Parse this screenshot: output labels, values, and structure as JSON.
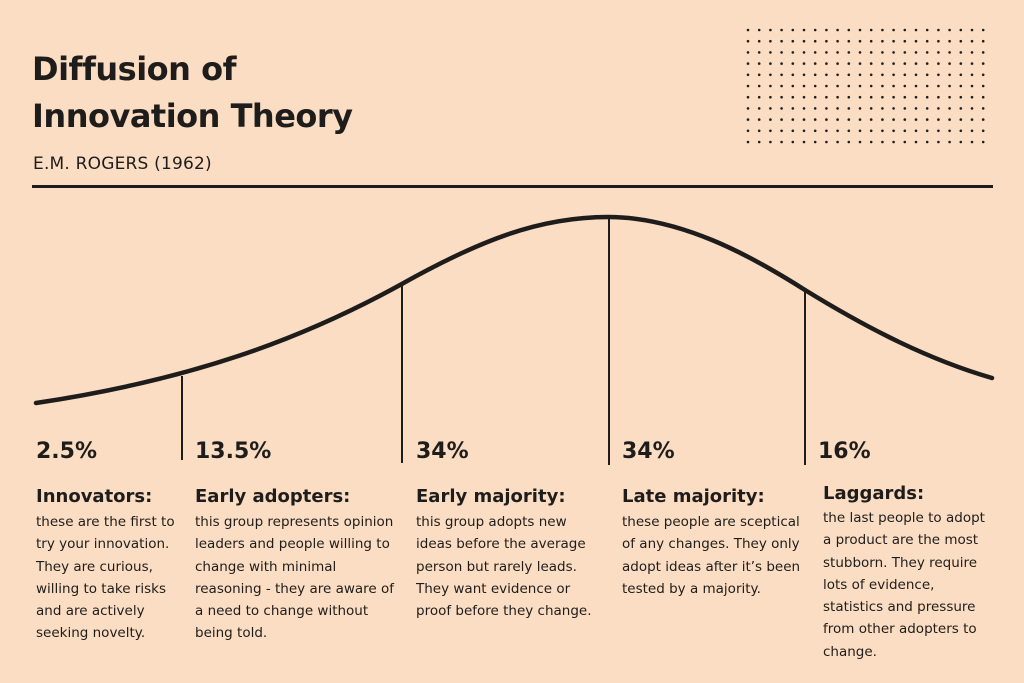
{
  "title": {
    "line1": "Diffusion of",
    "line2": "Innovation Theory"
  },
  "subtitle": "E.M. ROGERS (1962)",
  "colors": {
    "background": "#FBDDC3",
    "ink": "#1F1D1B"
  },
  "segments": [
    {
      "percent": "2.5%",
      "label": "Innovators:",
      "description": "these are the first to try your innovation. They are curious, willing to take risks and are actively seeking novelty."
    },
    {
      "percent": "13.5%",
      "label": "Early adopters:",
      "description": "this group represents opinion leaders and people willing to change with minimal reasoning - they are aware of a need to change without being told."
    },
    {
      "percent": "34%",
      "label": "Early majority:",
      "description": "this group adopts new ideas before the average person but rarely leads. They want evidence or proof before they change."
    },
    {
      "percent": "34%",
      "label": "Late majority:",
      "description": "these people are sceptical of any changes. They only adopt ideas after it’s been tested by a majority."
    },
    {
      "percent": "16%",
      "label": "Laggards:",
      "description": "the last people to adopt a product are the most stubborn. They require lots of evidence, statistics and pressure from other adopters to change."
    }
  ]
}
